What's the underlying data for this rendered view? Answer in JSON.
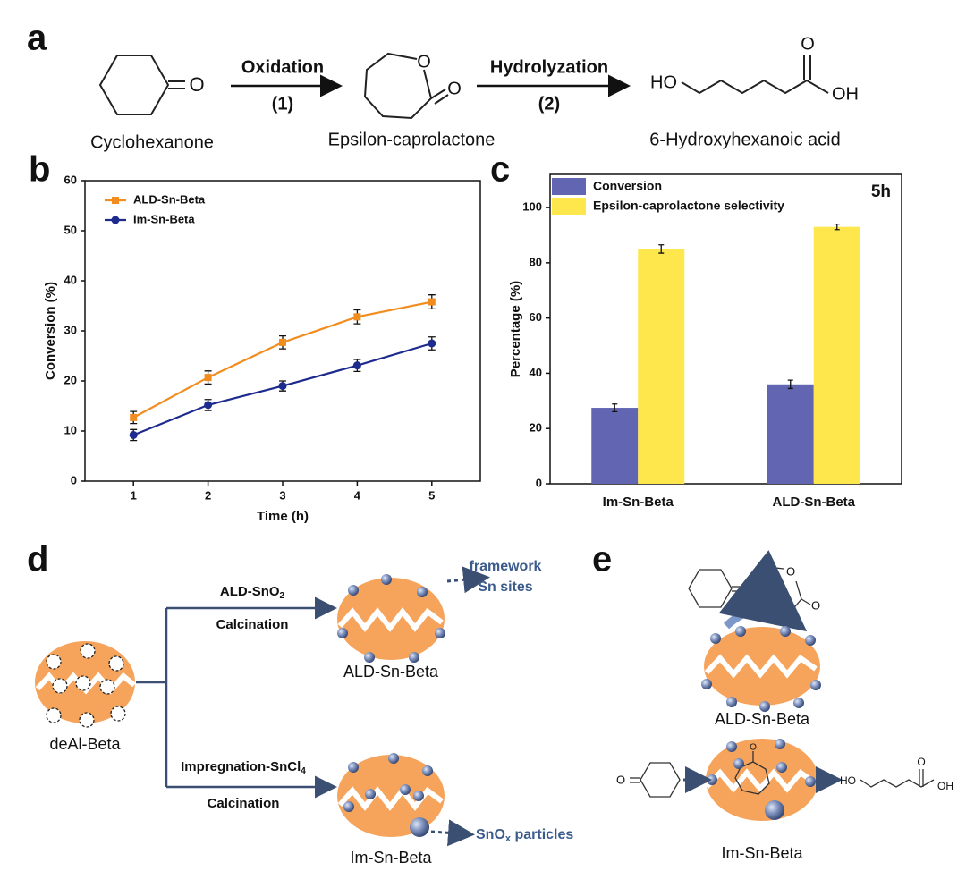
{
  "panels": {
    "a": {
      "label": "a",
      "step1": "Oxidation",
      "step1_num": "(1)",
      "step2": "Hydrolyzation",
      "step2_num": "(2)",
      "compounds": [
        "Cyclohexanone",
        "Epsilon-caprolactone",
        "6-Hydroxyhexanoic acid"
      ],
      "atoms": [
        "O",
        "O",
        "O",
        "HO",
        "O",
        "OH"
      ]
    },
    "b": {
      "label": "b"
    },
    "c": {
      "label": "c"
    },
    "d": {
      "label": "d",
      "start": "deAl-Beta",
      "route1": {
        "step": "ALD-SnO",
        "sub": "2",
        "second": "Calcination",
        "product": "ALD-Sn-Beta",
        "note": [
          "framework",
          "Sn sites"
        ]
      },
      "route2": {
        "step": "Impregnation-SnCl",
        "sub": "4",
        "second": "Calcination",
        "product": "Im-Sn-Beta",
        "note": "SnO",
        "note_sub": "x",
        "note_rest": " particles"
      }
    },
    "e": {
      "label": "e",
      "top": "ALD-Sn-Beta",
      "bottom": "Im-Sn-Beta",
      "atoms": [
        "O",
        "O",
        "O",
        "O",
        "O",
        "HO",
        "O",
        "OH"
      ]
    }
  },
  "chart_data": [
    {
      "type": "line",
      "x_label": "Time (h)",
      "y_label": "Conversion (%)",
      "x": [
        1,
        2,
        3,
        4,
        5
      ],
      "xlim": [
        0.35,
        5.65
      ],
      "xticks": [
        1,
        2,
        3,
        4,
        5
      ],
      "ylim": [
        0,
        60
      ],
      "yticks": [
        0,
        10,
        20,
        30,
        40,
        50,
        60
      ],
      "legend": "upper left",
      "series": [
        {
          "name": "ALD-Sn-Beta",
          "color": "#f28c1e",
          "values": [
            12.7,
            20.7,
            27.7,
            32.8,
            35.8
          ],
          "errors": [
            1.2,
            1.3,
            1.3,
            1.4,
            1.4
          ]
        },
        {
          "name": "Im-Sn-Beta",
          "color": "#1d2a8e",
          "values": [
            9.2,
            15.2,
            19.0,
            23.1,
            27.5
          ],
          "errors": [
            1.1,
            1.1,
            1.0,
            1.2,
            1.3
          ]
        }
      ]
    },
    {
      "type": "bar",
      "y_label": "Percentage (%)",
      "annotation": "5h",
      "categories": [
        "Im-Sn-Beta",
        "ALD-Sn-Beta"
      ],
      "ylim": [
        0,
        112
      ],
      "yticks": [
        0,
        20,
        40,
        60,
        80,
        100
      ],
      "legend": "upper left",
      "series": [
        {
          "name": "Conversion",
          "color": "#6265b1",
          "values": [
            27.5,
            36.0
          ],
          "errors": [
            1.4,
            1.5
          ]
        },
        {
          "name": "Epsilon-caprolactone selectivity",
          "color": "#fde74c",
          "values": [
            85.0,
            93.0
          ],
          "errors": [
            1.5,
            1.0
          ]
        }
      ]
    }
  ]
}
